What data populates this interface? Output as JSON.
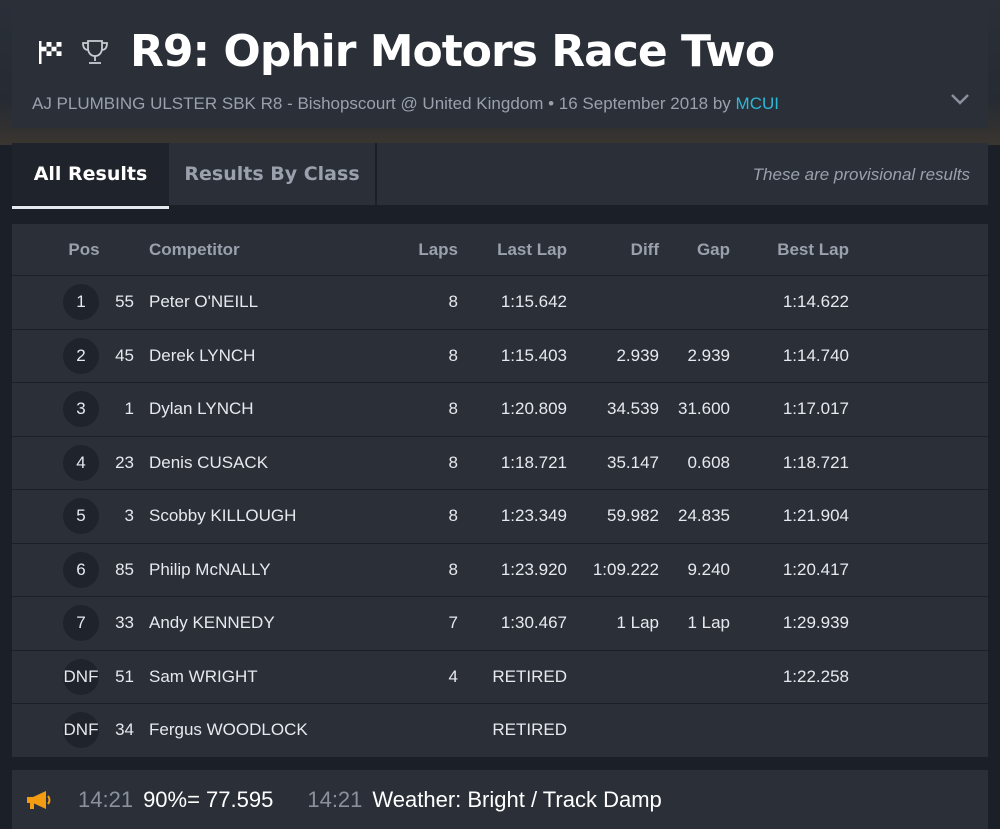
{
  "header": {
    "title": "R9: Ophir Motors Race Two",
    "subtitle_prefix": "AJ PLUMBING ULSTER SBK R8 - Bishopscourt @ United Kingdom • 16 September 2018 by",
    "author": "MCUI",
    "icons": [
      "checkered-flag-icon",
      "trophy-icon",
      "chevron-down-icon"
    ]
  },
  "tabs": [
    {
      "label": "All Results",
      "active": true
    },
    {
      "label": "Results By Class",
      "active": false
    }
  ],
  "provisional_note": "These are provisional results",
  "table": {
    "columns": {
      "pos": "Pos",
      "competitor": "Competitor",
      "laps": "Laps",
      "last_lap": "Last Lap",
      "diff": "Diff",
      "gap": "Gap",
      "best_lap": "Best Lap"
    },
    "rows": [
      {
        "pos": "1",
        "num": "55",
        "competitor": "Peter O'NEILL",
        "laps": "8",
        "last_lap": "1:15.642",
        "diff": "",
        "gap": "",
        "best_lap": "1:14.622"
      },
      {
        "pos": "2",
        "num": "45",
        "competitor": "Derek LYNCH",
        "laps": "8",
        "last_lap": "1:15.403",
        "diff": "2.939",
        "gap": "2.939",
        "best_lap": "1:14.740"
      },
      {
        "pos": "3",
        "num": "1",
        "competitor": "Dylan LYNCH",
        "laps": "8",
        "last_lap": "1:20.809",
        "diff": "34.539",
        "gap": "31.600",
        "best_lap": "1:17.017"
      },
      {
        "pos": "4",
        "num": "23",
        "competitor": "Denis CUSACK",
        "laps": "8",
        "last_lap": "1:18.721",
        "diff": "35.147",
        "gap": "0.608",
        "best_lap": "1:18.721"
      },
      {
        "pos": "5",
        "num": "3",
        "competitor": "Scobby KILLOUGH",
        "laps": "8",
        "last_lap": "1:23.349",
        "diff": "59.982",
        "gap": "24.835",
        "best_lap": "1:21.904"
      },
      {
        "pos": "6",
        "num": "85",
        "competitor": "Philip McNALLY",
        "laps": "8",
        "last_lap": "1:23.920",
        "diff": "1:09.222",
        "gap": "9.240",
        "best_lap": "1:20.417"
      },
      {
        "pos": "7",
        "num": "33",
        "competitor": "Andy KENNEDY",
        "laps": "7",
        "last_lap": "1:30.467",
        "diff": "1 Lap",
        "gap": "1 Lap",
        "best_lap": "1:29.939"
      },
      {
        "pos": "DNF",
        "num": "51",
        "competitor": "Sam WRIGHT",
        "laps": "4",
        "last_lap": "RETIRED",
        "diff": "",
        "gap": "",
        "best_lap": "1:22.258"
      },
      {
        "pos": "DNF",
        "num": "34",
        "competitor": "Fergus WOODLOCK",
        "laps": "",
        "last_lap": "RETIRED",
        "diff": "",
        "gap": "",
        "best_lap": ""
      }
    ]
  },
  "ticker": {
    "icon": "megaphone-icon",
    "items": [
      {
        "time": "14:21",
        "message": "90%= 77.595"
      },
      {
        "time": "14:21",
        "message": "Weather: Bright / Track Damp"
      }
    ]
  },
  "colors": {
    "background": "#1b1f27",
    "panel": "#2a2f38",
    "accent_link": "#2eb8d6",
    "megaphone": "#f39c12"
  }
}
